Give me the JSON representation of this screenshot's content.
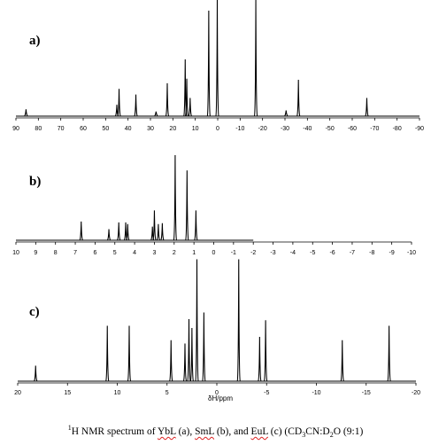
{
  "chart_data": [
    {
      "type": "line",
      "panel_label": "a)",
      "x_range": [
        90,
        -90
      ],
      "ticks": [
        90,
        80,
        70,
        60,
        50,
        40,
        30,
        20,
        10,
        0,
        -10,
        -20,
        -30,
        -40,
        -50,
        -60,
        -70,
        -80,
        -90
      ],
      "tick_labels": [
        "90",
        "80",
        "70",
        "60",
        "50",
        "40",
        "30",
        "20",
        "10",
        "0",
        "-10",
        "-20",
        "-30",
        "-40",
        "-50",
        "-60",
        "-70",
        "-80",
        "-90"
      ],
      "xlabel": "",
      "peaks": [
        {
          "shift": 85.5,
          "height": 0.06
        },
        {
          "shift": 45.0,
          "height": 0.1
        },
        {
          "shift": 44.0,
          "height": 0.24
        },
        {
          "shift": 36.5,
          "height": 0.19
        },
        {
          "shift": 27.5,
          "height": 0.04
        },
        {
          "shift": 22.5,
          "height": 0.29
        },
        {
          "shift": 14.5,
          "height": 0.5
        },
        {
          "shift": 13.8,
          "height": 0.33
        },
        {
          "shift": 12.3,
          "height": 0.16
        },
        {
          "shift": 4.0,
          "height": 0.93
        },
        {
          "shift": 0.2,
          "height": 1.1
        },
        {
          "shift": -17.0,
          "height": 1.1
        },
        {
          "shift": -30.5,
          "height": 0.05
        },
        {
          "shift": -36.0,
          "height": 0.32
        },
        {
          "shift": -66.5,
          "height": 0.16
        }
      ]
    },
    {
      "type": "line",
      "panel_label": "b)",
      "x_range": [
        10,
        -10
      ],
      "ticks": [
        10,
        9,
        8,
        7,
        6,
        5,
        4,
        3,
        2,
        1,
        0,
        -1,
        -2,
        -3,
        -4,
        -5,
        -6,
        -7,
        -8,
        -9,
        -10
      ],
      "tick_labels": [
        "10",
        "9",
        "8",
        "7",
        "6",
        "5",
        "4",
        "3",
        "2",
        "1",
        "0",
        "-1",
        "-2",
        "-3",
        "-4",
        "-5",
        "-6",
        "-7",
        "-8",
        "-9",
        "-10"
      ],
      "xlabel": "",
      "spectrum_end": -2.0,
      "peaks": [
        {
          "shift": 6.7,
          "height": 0.22
        },
        {
          "shift": 5.3,
          "height": 0.13
        },
        {
          "shift": 4.8,
          "height": 0.21
        },
        {
          "shift": 4.45,
          "height": 0.21
        },
        {
          "shift": 4.35,
          "height": 0.19
        },
        {
          "shift": 3.1,
          "height": 0.16
        },
        {
          "shift": 3.0,
          "height": 0.35
        },
        {
          "shift": 2.8,
          "height": 0.19
        },
        {
          "shift": 2.6,
          "height": 0.2
        },
        {
          "shift": 1.95,
          "height": 1.0
        },
        {
          "shift": 1.35,
          "height": 0.82
        },
        {
          "shift": 0.9,
          "height": 0.35
        }
      ]
    },
    {
      "type": "line",
      "panel_label": "c)",
      "x_range": [
        20,
        -20
      ],
      "ticks": [
        20,
        15,
        10,
        5,
        0,
        -5,
        -10,
        -15,
        -20
      ],
      "tick_labels": [
        "20",
        "15",
        "10",
        "5",
        "0",
        "-5",
        "-10",
        "-15",
        "-20"
      ],
      "xlabel": "δH/ppm",
      "peaks": [
        {
          "shift": 18.2,
          "height": 0.14
        },
        {
          "shift": 11.0,
          "height": 0.5
        },
        {
          "shift": 8.8,
          "height": 0.5
        },
        {
          "shift": 4.6,
          "height": 0.37
        },
        {
          "shift": 3.2,
          "height": 0.34
        },
        {
          "shift": 2.8,
          "height": 0.56
        },
        {
          "shift": 2.5,
          "height": 0.48
        },
        {
          "shift": 2.0,
          "height": 1.1
        },
        {
          "shift": 1.3,
          "height": 0.62
        },
        {
          "shift": -2.2,
          "height": 1.1
        },
        {
          "shift": -4.3,
          "height": 0.4
        },
        {
          "shift": -4.9,
          "height": 0.55
        },
        {
          "shift": -12.6,
          "height": 0.37
        },
        {
          "shift": -17.3,
          "height": 0.5
        }
      ]
    }
  ],
  "caption": {
    "sup": "1",
    "pre": "H NMR spectrum of ",
    "c1": "YbL",
    "m1": " (a), ",
    "c2": "SmL",
    "m2": " (b),  and ",
    "c3": "EuL",
    "m3": " (c) (CD",
    "s1": "3",
    "m4": "CN:D",
    "s2": "2",
    "m5": "O (9:1)"
  },
  "line_color": "#000000"
}
